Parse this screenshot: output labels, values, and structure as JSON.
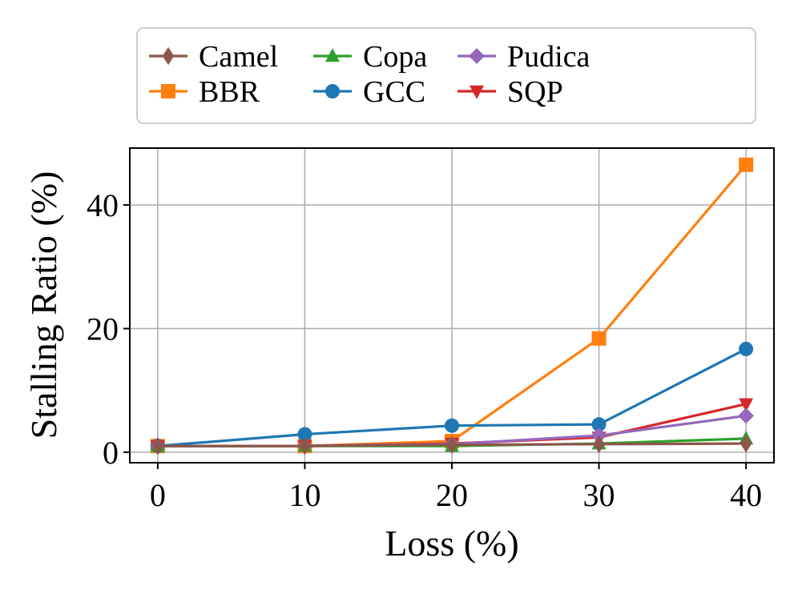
{
  "chart_data": {
    "type": "line",
    "title": "",
    "xlabel": "Loss (%)",
    "ylabel": "Stalling Ratio (%)",
    "x": [
      0,
      10,
      20,
      30,
      40
    ],
    "xlim": [
      -1.9,
      41.9
    ],
    "ylim": [
      -1.7,
      49.2
    ],
    "xticks": [
      0,
      10,
      20,
      30,
      40
    ],
    "yticks": [
      0,
      20,
      40
    ],
    "grid": true,
    "legend": {
      "placement": "top",
      "columns": 4
    },
    "series": [
      {
        "name": "Camel",
        "color": "#8c564b",
        "marker": "diamond",
        "values": [
          1.0,
          1.0,
          1.2,
          1.3,
          1.4
        ]
      },
      {
        "name": "BBR",
        "color": "#ff7f0e",
        "marker": "square",
        "values": [
          1.0,
          1.0,
          1.8,
          18.4,
          46.5
        ]
      },
      {
        "name": "Copa",
        "color": "#2ca02c",
        "marker": "triangle-up",
        "values": [
          1.0,
          1.0,
          1.0,
          1.4,
          2.2
        ]
      },
      {
        "name": "GCC",
        "color": "#1f77b4",
        "marker": "circle",
        "values": [
          1.0,
          2.9,
          4.3,
          4.5,
          16.7
        ]
      },
      {
        "name": "Pudica",
        "color": "#9467bd",
        "marker": "diamond-thin",
        "values": [
          1.0,
          1.0,
          1.3,
          2.7,
          5.9
        ]
      },
      {
        "name": "SQP",
        "color": "#d62728",
        "marker": "triangle-down",
        "values": [
          1.0,
          1.0,
          1.4,
          2.4,
          7.8
        ]
      }
    ]
  }
}
